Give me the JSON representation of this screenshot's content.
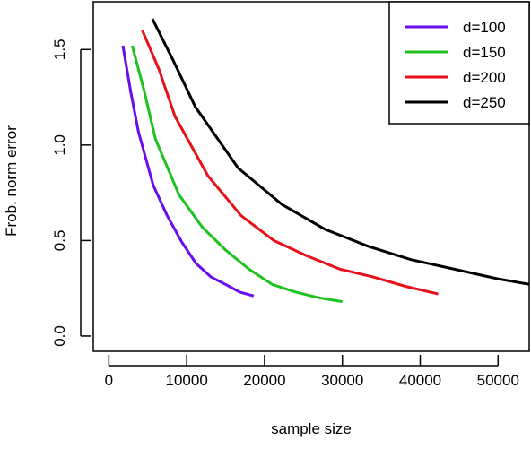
{
  "chart_data": {
    "type": "line",
    "title": "",
    "xlabel": "sample size",
    "ylabel": "Frob. norm error",
    "xlim": [
      -2000,
      54000
    ],
    "ylim": [
      -0.08,
      1.75
    ],
    "xticks": [
      0,
      10000,
      20000,
      30000,
      40000,
      50000
    ],
    "yticks": [
      0.0,
      0.5,
      1.0,
      1.5
    ],
    "xtick_labels": [
      "0",
      "10000",
      "20000",
      "30000",
      "40000",
      "50000"
    ],
    "ytick_labels": [
      "0.0",
      "0.5",
      "1.0",
      "1.5"
    ],
    "grid": false,
    "legend_position": "top-right",
    "series": [
      {
        "name": "d=100",
        "color": "#6a0dee",
        "x": [
          1800,
          2800,
          3800,
          5700,
          7500,
          9400,
          11200,
          13100,
          15000,
          16800,
          18600
        ],
        "y": [
          1.52,
          1.28,
          1.07,
          0.79,
          0.63,
          0.49,
          0.38,
          0.31,
          0.27,
          0.23,
          0.21
        ]
      },
      {
        "name": "d=150",
        "color": "#1ec21e",
        "x": [
          3000,
          4500,
          6000,
          9000,
          12000,
          15000,
          18000,
          21000,
          24000,
          27000,
          30000
        ],
        "y": [
          1.52,
          1.29,
          1.03,
          0.74,
          0.57,
          0.45,
          0.35,
          0.27,
          0.23,
          0.2,
          0.18
        ]
      },
      {
        "name": "d=200",
        "color": "#e8111a",
        "x": [
          4300,
          6400,
          8500,
          12700,
          17000,
          21200,
          25400,
          29700,
          33900,
          38100,
          42300
        ],
        "y": [
          1.6,
          1.4,
          1.15,
          0.84,
          0.63,
          0.5,
          0.42,
          0.35,
          0.31,
          0.26,
          0.22
        ]
      },
      {
        "name": "d=250",
        "color": "#000000",
        "x": [
          5600,
          8300,
          11100,
          16600,
          22200,
          27700,
          33300,
          38800,
          44400,
          49900,
          55500
        ],
        "y": [
          1.66,
          1.44,
          1.2,
          0.88,
          0.69,
          0.56,
          0.47,
          0.4,
          0.35,
          0.3,
          0.26
        ]
      }
    ]
  }
}
